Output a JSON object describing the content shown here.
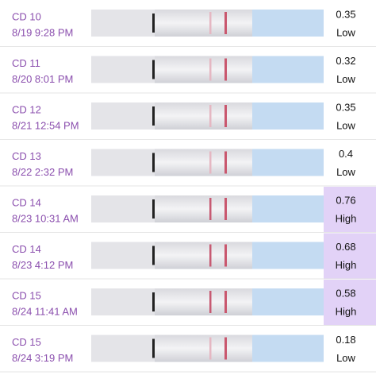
{
  "rows": [
    {
      "day": "CD 10",
      "time": "8/19 9:28 PM",
      "value": "0.35",
      "level": "Low"
    },
    {
      "day": "CD 11",
      "time": "8/20 8:01 PM",
      "value": "0.32",
      "level": "Low"
    },
    {
      "day": "CD 12",
      "time": "8/21 12:54 PM",
      "value": "0.35",
      "level": "Low"
    },
    {
      "day": "CD 13",
      "time": "8/22 2:32 PM",
      "value": "0.4",
      "level": "Low"
    },
    {
      "day": "CD 14",
      "time": "8/23 10:31 AM",
      "value": "0.76",
      "level": "High"
    },
    {
      "day": "CD 14",
      "time": "8/23 4:12 PM",
      "value": "0.68",
      "level": "High"
    },
    {
      "day": "CD 15",
      "time": "8/24 11:41 AM",
      "value": "0.58",
      "level": "High"
    },
    {
      "day": "CD 15",
      "time": "8/24 3:19 PM",
      "value": "0.18",
      "level": "Low"
    }
  ]
}
